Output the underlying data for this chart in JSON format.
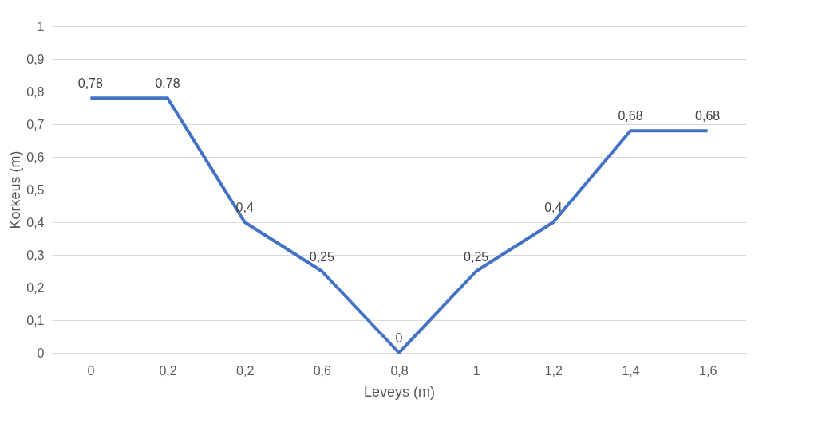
{
  "chart_data": {
    "type": "line",
    "xlabel": "Leveys (m)",
    "ylabel": "Korkeus (m)",
    "categories": [
      "0",
      "0,2",
      "0,2",
      "0,6",
      "0,8",
      "1",
      "1,2",
      "1,4",
      "1,6"
    ],
    "values": [
      0.78,
      0.78,
      0.4,
      0.25,
      0,
      0.25,
      0.4,
      0.68,
      0.68
    ],
    "value_labels": [
      "0,78",
      "0,78",
      "0,4",
      "0,25",
      "0",
      "0,25",
      "0,4",
      "0,68",
      "0,68"
    ],
    "color": "#4472c4",
    "ylim": [
      0,
      1
    ],
    "yticks": [
      {
        "value": 0,
        "label": "0"
      },
      {
        "value": 0.1,
        "label": "0,1"
      },
      {
        "value": 0.2,
        "label": "0,2"
      },
      {
        "value": 0.3,
        "label": "0,3"
      },
      {
        "value": 0.4,
        "label": "0,4"
      },
      {
        "value": 0.5,
        "label": "0,5"
      },
      {
        "value": 0.6,
        "label": "0,6"
      },
      {
        "value": 0.7,
        "label": "0,7"
      },
      {
        "value": 0.8,
        "label": "0,8"
      },
      {
        "value": 0.9,
        "label": "0,9"
      },
      {
        "value": 1,
        "label": "1"
      }
    ],
    "grid": "y",
    "marker": "none",
    "line_style": "solid"
  }
}
